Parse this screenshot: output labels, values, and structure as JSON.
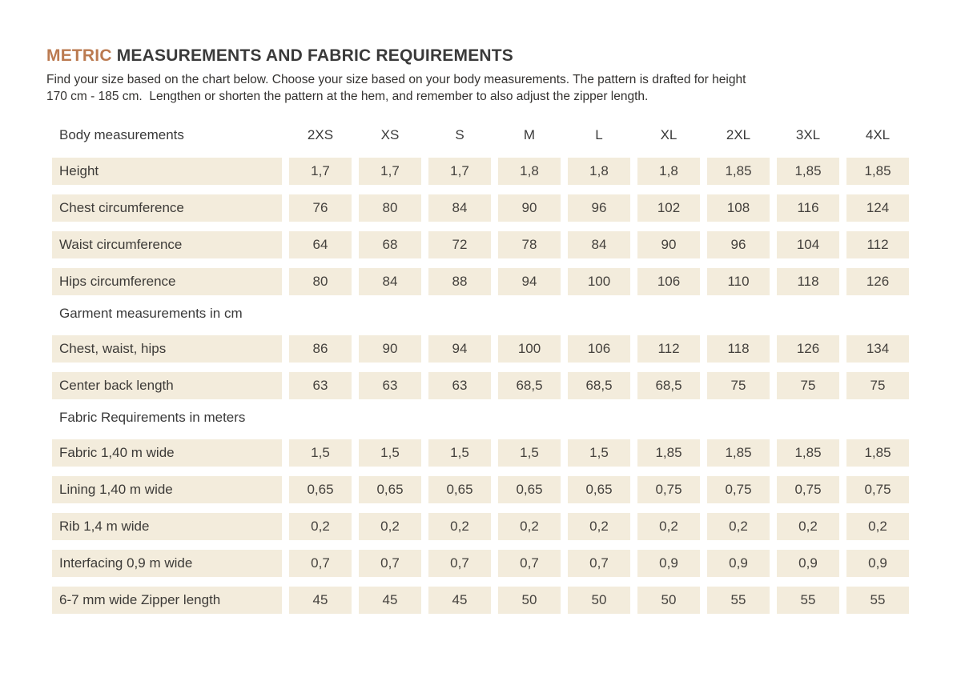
{
  "page": {
    "title": {
      "highlight": "METRIC",
      "rest": " MEASUREMENTS AND FABRIC REQUIREMENTS"
    },
    "subtitle_lines": [
      "Find your size based on the chart below. Choose your size based on your body measurements. The pattern is drafted for height",
      "170 cm - 185 cm.  Lengthen or shorten the pattern at the hem, and remember to also adjust the zipper length."
    ]
  },
  "colors": {
    "accent": "#bb7a50",
    "cell_background": "#f3ecdc",
    "heading_text": "#3a3a3a",
    "body_text": "#3d3b38"
  },
  "table": {
    "header": {
      "label": "Body measurements",
      "sizes": [
        "2XS",
        "XS",
        "S",
        "M",
        "L",
        "XL",
        "2XL",
        "3XL",
        "4XL"
      ]
    },
    "sections": [
      {
        "heading": null,
        "rows": [
          {
            "label": "Height",
            "values": [
              "1,7",
              "1,7",
              "1,7",
              "1,8",
              "1,8",
              "1,8",
              "1,85",
              "1,85",
              "1,85"
            ]
          },
          {
            "label": "Chest circumference",
            "values": [
              "76",
              "80",
              "84",
              "90",
              "96",
              "102",
              "108",
              "116",
              "124"
            ]
          },
          {
            "label": "Waist circumference",
            "values": [
              "64",
              "68",
              "72",
              "78",
              "84",
              "90",
              "96",
              "104",
              "112"
            ]
          },
          {
            "label": "Hips circumference",
            "values": [
              "80",
              "84",
              "88",
              "94",
              "100",
              "106",
              "110",
              "118",
              "126"
            ]
          }
        ]
      },
      {
        "heading": "Garment measurements in cm",
        "rows": [
          {
            "label": "Chest, waist, hips",
            "values": [
              "86",
              "90",
              "94",
              "100",
              "106",
              "112",
              "118",
              "126",
              "134"
            ]
          },
          {
            "label": "Center back length",
            "values": [
              "63",
              "63",
              "63",
              "68,5",
              "68,5",
              "68,5",
              "75",
              "75",
              "75"
            ]
          }
        ]
      },
      {
        "heading": "Fabric Requirements in meters",
        "rows": [
          {
            "label": "Fabric 1,40 m wide",
            "values": [
              "1,5",
              "1,5",
              "1,5",
              "1,5",
              "1,5",
              "1,85",
              "1,85",
              "1,85",
              "1,85"
            ]
          },
          {
            "label": "Lining 1,40 m wide",
            "values": [
              "0,65",
              "0,65",
              "0,65",
              "0,65",
              "0,65",
              "0,75",
              "0,75",
              "0,75",
              "0,75"
            ]
          },
          {
            "label": "Rib 1,4 m wide",
            "values": [
              "0,2",
              "0,2",
              "0,2",
              "0,2",
              "0,2",
              "0,2",
              "0,2",
              "0,2",
              "0,2"
            ]
          },
          {
            "label": "Interfacing 0,9 m wide",
            "values": [
              "0,7",
              "0,7",
              "0,7",
              "0,7",
              "0,7",
              "0,9",
              "0,9",
              "0,9",
              "0,9"
            ]
          },
          {
            "label": "6-7 mm wide Zipper length",
            "values": [
              "45",
              "45",
              "45",
              "50",
              "50",
              "50",
              "55",
              "55",
              "55"
            ]
          }
        ]
      }
    ]
  }
}
